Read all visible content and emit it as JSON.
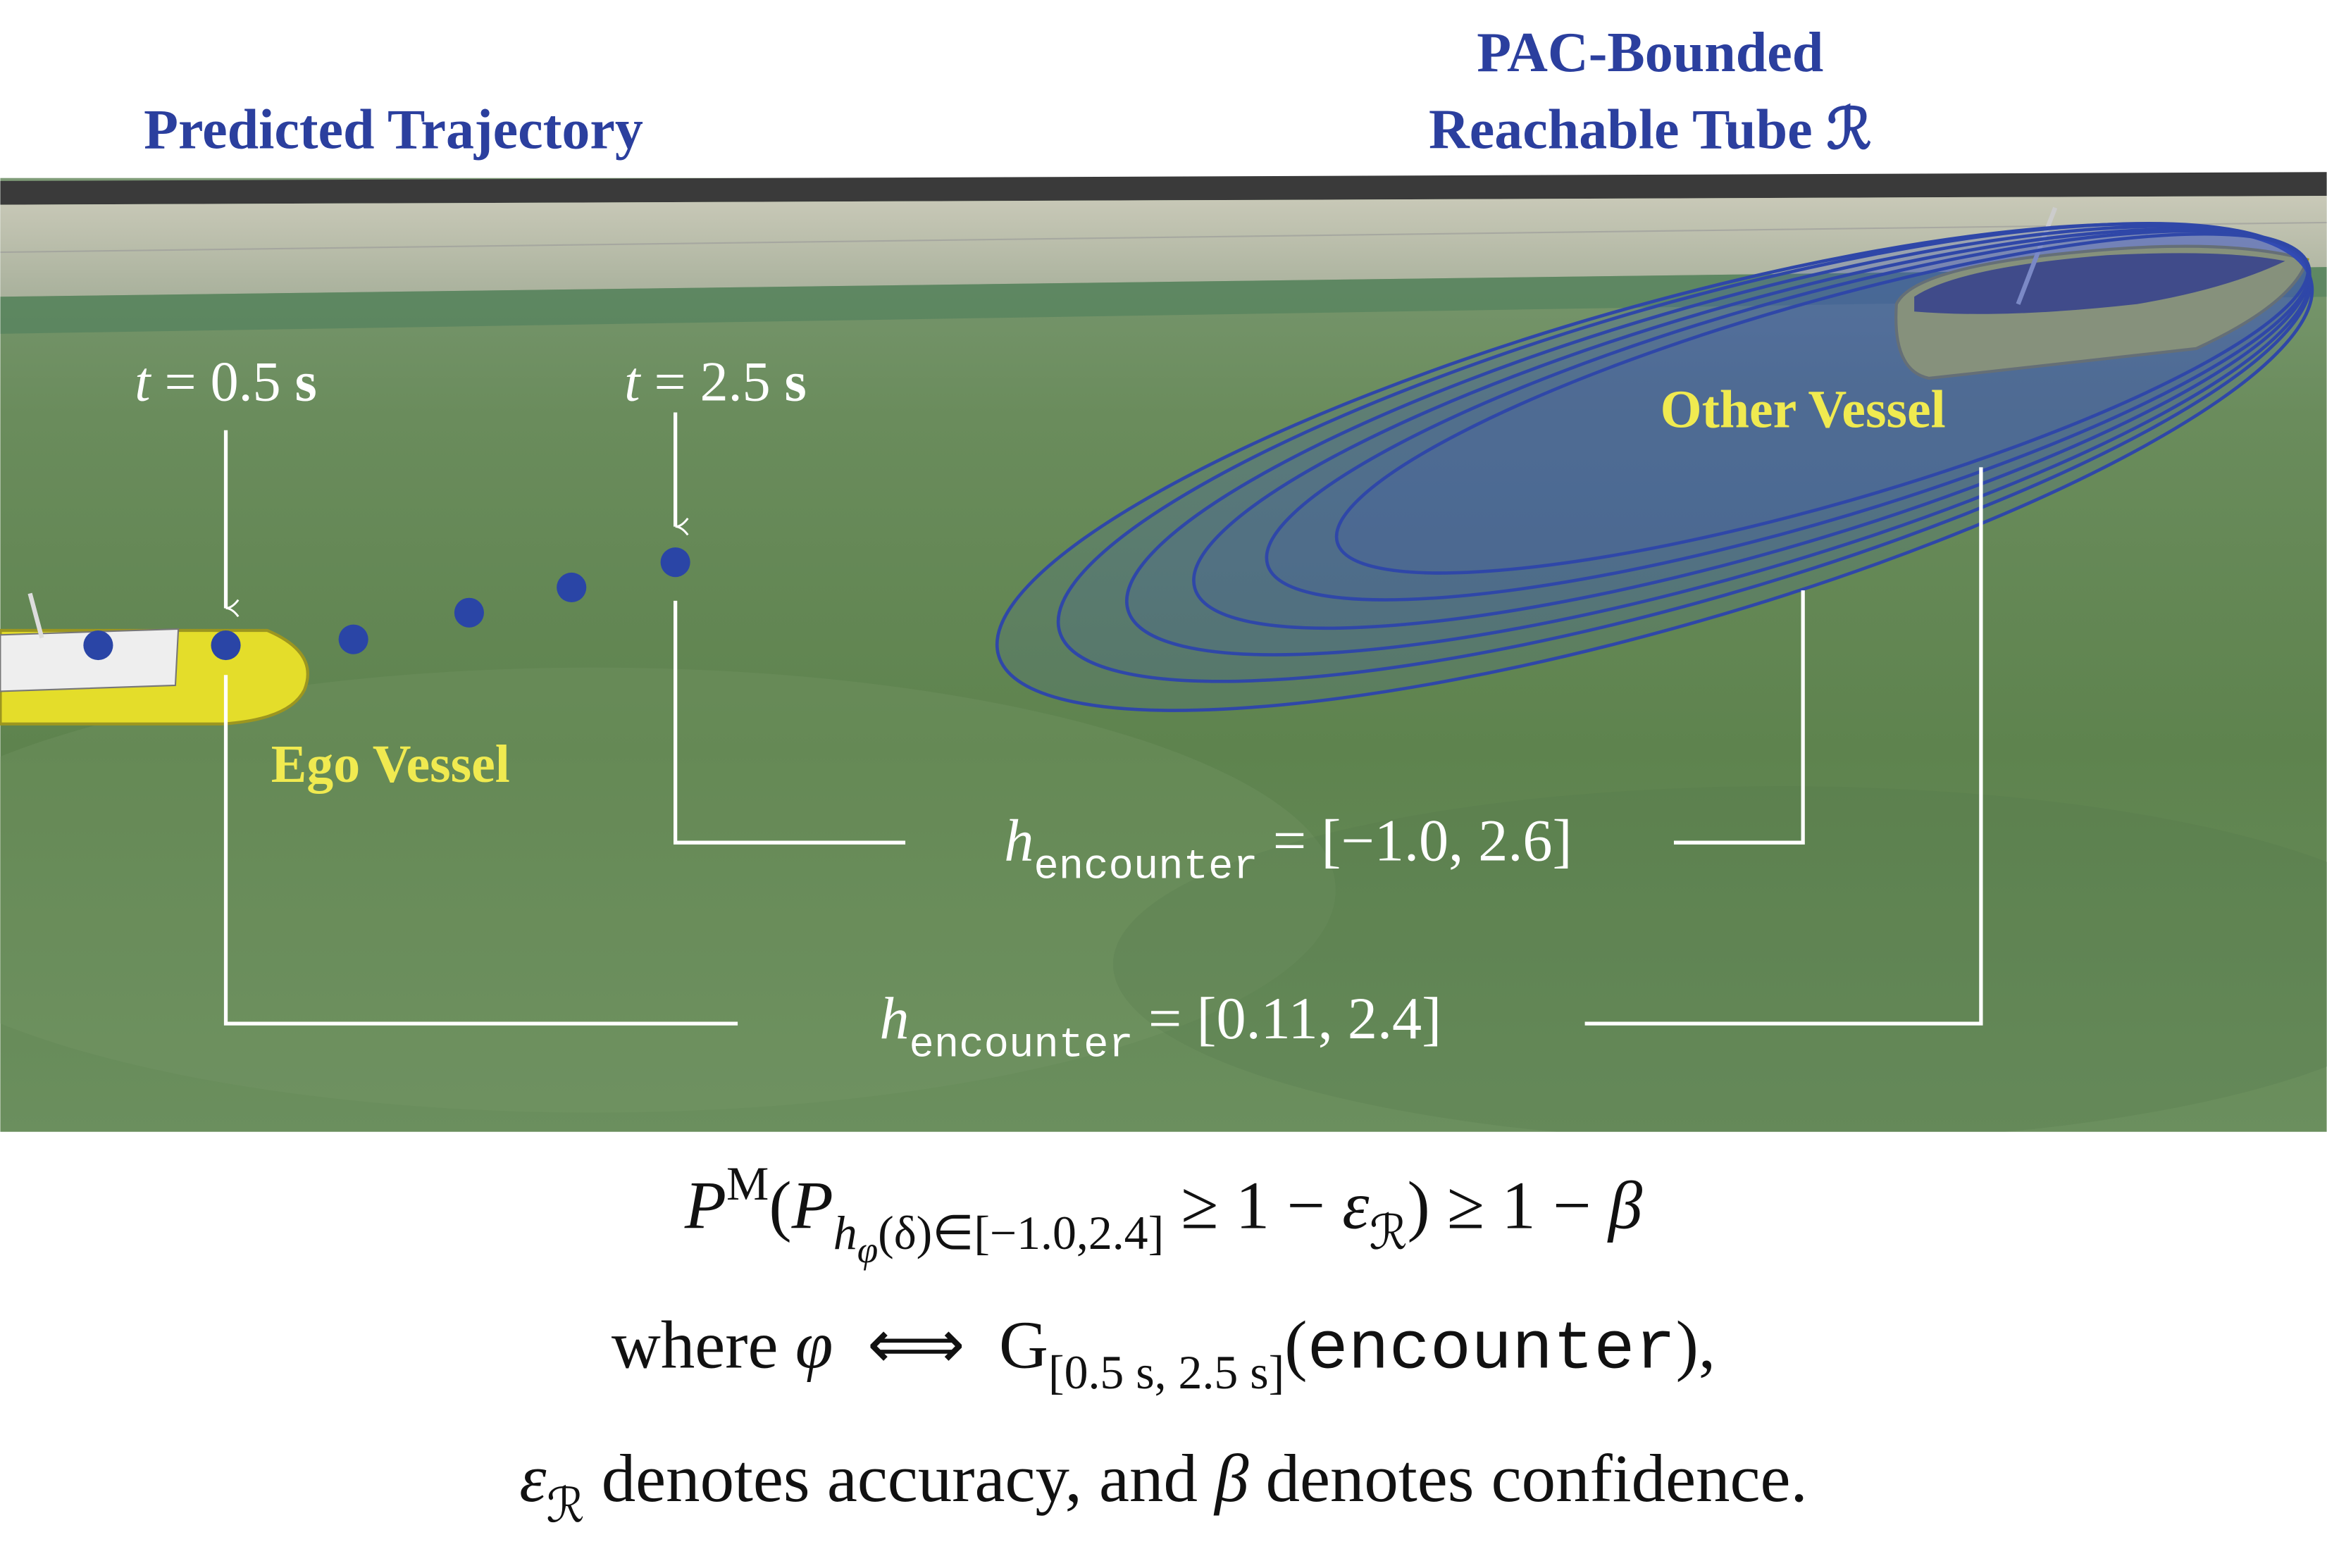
{
  "labels": {
    "predicted_trajectory": "Predicted Trajectory",
    "tube_title": [
      "PAC-Bounded",
      "Reachable Tube ℛ"
    ],
    "other_vessel": "Other Vessel",
    "ego_vessel": "Ego Vessel",
    "t_start": [
      {
        "it": "t"
      },
      {
        "base": " = 0.5 "
      },
      {
        "bold": "s"
      }
    ],
    "t_end": [
      {
        "it": "t"
      },
      {
        "base": " = 2.5 "
      },
      {
        "bold": "s"
      }
    ],
    "h_inner": [
      {
        "it": "h"
      },
      {
        "sub_mono": "encounter"
      },
      {
        "base": " = [−1.0, 2.6]"
      }
    ],
    "h_outer": [
      {
        "it": "h"
      },
      {
        "sub_mono": "encounter"
      },
      {
        "base": " = [0.11, 2.4]"
      }
    ]
  },
  "caption": [
    [
      {
        "it": "P"
      },
      {
        "sup": "M"
      },
      {
        "base": "("
      },
      {
        "it": "P"
      },
      {
        "sub_it": "h"
      },
      {
        "subsub_it": "φ"
      },
      {
        "sub": "(δ)∈[−1.0,2.4]"
      },
      {
        "base": " ≥ 1 − "
      },
      {
        "it": "ε"
      },
      {
        "sub": "ℛ"
      },
      {
        "base": ") ≥ 1 − "
      },
      {
        "it": "β"
      }
    ],
    [
      {
        "base": "where "
      },
      {
        "it": "φ"
      },
      {
        "base": "  ⟺  G"
      },
      {
        "sub": "[0.5 s, 2.5 s]"
      },
      {
        "base": "("
      },
      {
        "mono": "encounter"
      },
      {
        "base": "),"
      }
    ],
    [
      {
        "it": "ε"
      },
      {
        "sub": "ℛ"
      },
      {
        "base": " denotes accuracy, and "
      },
      {
        "it": "β"
      },
      {
        "base": " denotes confidence."
      }
    ]
  ]
}
